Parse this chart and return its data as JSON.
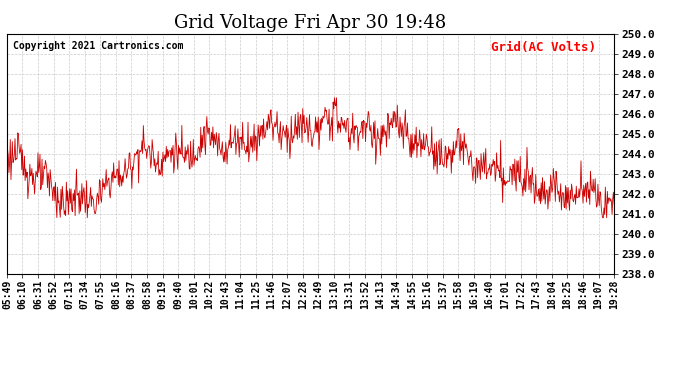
{
  "title": "Grid Voltage Fri Apr 30 19:48",
  "copyright": "Copyright 2021 Cartronics.com",
  "legend_label": "Grid(AC Volts)",
  "legend_color": "#ff0000",
  "line_color": "#cc0000",
  "background_color": "#ffffff",
  "grid_color": "#cccccc",
  "ylim": [
    238.0,
    250.0
  ],
  "yticks": [
    238.0,
    239.0,
    240.0,
    241.0,
    242.0,
    243.0,
    244.0,
    245.0,
    246.0,
    247.0,
    248.0,
    249.0,
    250.0
  ],
  "xtick_labels": [
    "05:49",
    "06:10",
    "06:31",
    "06:52",
    "07:13",
    "07:34",
    "07:55",
    "08:16",
    "08:37",
    "08:58",
    "09:19",
    "09:40",
    "10:01",
    "10:22",
    "10:43",
    "11:04",
    "11:25",
    "11:46",
    "12:07",
    "12:28",
    "12:49",
    "13:10",
    "13:31",
    "13:52",
    "14:13",
    "14:34",
    "14:55",
    "15:16",
    "15:37",
    "15:58",
    "16:19",
    "16:40",
    "17:01",
    "17:22",
    "17:43",
    "18:04",
    "18:25",
    "18:46",
    "19:07",
    "19:28"
  ],
  "title_fontsize": 13,
  "axis_fontsize": 7,
  "copyright_fontsize": 7,
  "legend_fontsize": 9,
  "yaxis_fontsize": 8
}
